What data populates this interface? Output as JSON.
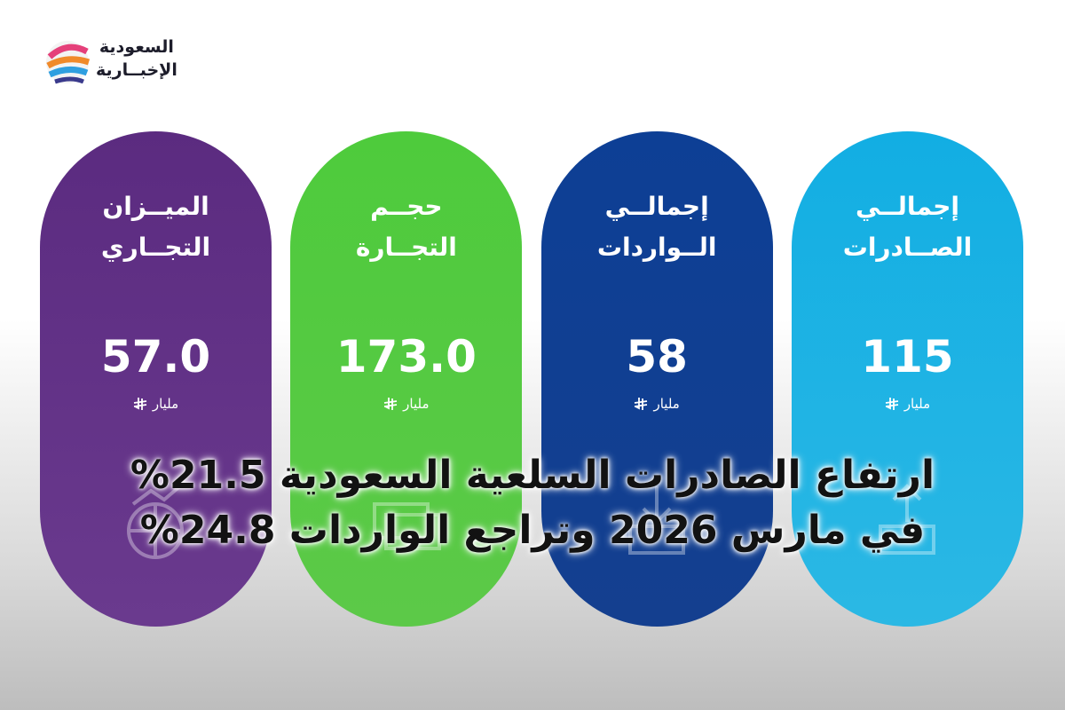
{
  "logo": {
    "line1": "السعودية",
    "line2": "الإخبــارية"
  },
  "cards": [
    {
      "title": [
        "إجمالــي",
        "الصــادرات"
      ],
      "value": "115",
      "unit": "مليار"
    },
    {
      "title": [
        "إجمالــي",
        "الــواردات"
      ],
      "value": "58",
      "unit": "مليار"
    },
    {
      "title": [
        "حجــم",
        "التجــارة"
      ],
      "value": "173.0",
      "unit": "مليار"
    },
    {
      "title": [
        "الميــزان",
        "التجــاري"
      ],
      "value": "57.0",
      "unit": "مليار"
    }
  ],
  "headline": [
    "ارتفاع الصادرات السلعية السعودية 21.5%",
    "في مارس 2026 وتراجع الواردات 24.8%"
  ]
}
